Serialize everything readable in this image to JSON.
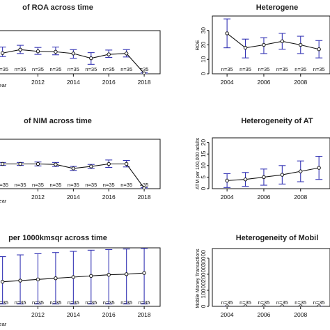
{
  "chart_data": [
    {
      "type": "line",
      "title": "of ROA across time",
      "xlabel": "Year",
      "xlabel_visible": "'ear",
      "ylabel": "",
      "x": [
        2010,
        2011,
        2012,
        2013,
        2014,
        2015,
        2016,
        2017,
        2018
      ],
      "xlim": [
        2009.7,
        2018.9
      ],
      "x_ticks": [
        2012,
        2014,
        2016,
        2018
      ],
      "ylim": [
        0,
        10
      ],
      "series": [
        {
          "values": [
            4.8,
            5.6,
            5.2,
            5.1,
            4.7,
            3.6,
            4.5,
            4.7,
            0.1
          ],
          "error_low": [
            4.0,
            4.7,
            4.5,
            4.4,
            3.6,
            2.2,
            3.8,
            3.9,
            0.0
          ],
          "error_high": [
            6.2,
            6.6,
            6.1,
            6.2,
            5.6,
            4.9,
            5.5,
            5.6,
            0.3
          ]
        }
      ],
      "n_labels": [
        "n=35",
        "n=35",
        "n=35",
        "n=35",
        "n=35",
        "n=35",
        "n=35",
        "n=35",
        "=35"
      ],
      "grid": false
    },
    {
      "type": "line",
      "title": "Heterogene",
      "xlabel": "",
      "ylabel": "ROE",
      "x": [
        2004,
        2005,
        2006,
        2007,
        2008,
        2009
      ],
      "xlim": [
        2003.2,
        2009.6
      ],
      "x_ticks": [
        2004,
        2006,
        2008
      ],
      "y_ticks": [
        0,
        10,
        20,
        30
      ],
      "ylim": [
        0,
        40
      ],
      "series": [
        {
          "values": [
            28,
            18,
            20,
            22.5,
            20,
            17
          ],
          "error_low": [
            18,
            11,
            14,
            17,
            14,
            11
          ],
          "error_high": [
            38,
            24,
            25,
            28,
            26,
            23
          ]
        }
      ],
      "n_labels": [
        "n=35",
        "n=35",
        "n=35",
        "n=35",
        "n=35",
        "n=35"
      ],
      "grid": false
    },
    {
      "type": "line",
      "title": "of NIM across time",
      "xlabel": "Year",
      "xlabel_visible": "'ear",
      "ylabel": "",
      "x": [
        2010,
        2011,
        2012,
        2013,
        2014,
        2015,
        2016,
        2017,
        2018
      ],
      "xlim": [
        2009.7,
        2018.9
      ],
      "x_ticks": [
        2012,
        2014,
        2016,
        2018
      ],
      "ylim": [
        0,
        10
      ],
      "series": [
        {
          "values": [
            5.0,
            5.0,
            5.0,
            4.9,
            4.1,
            4.5,
            5.0,
            5.0,
            0.1
          ],
          "error_low": [
            4.7,
            4.7,
            4.6,
            4.5,
            3.7,
            4.1,
            4.3,
            4.4,
            0.0
          ],
          "error_high": [
            5.3,
            5.3,
            5.4,
            5.3,
            4.5,
            4.9,
            5.8,
            5.7,
            0.2
          ]
        }
      ],
      "n_labels": [
        "n=35",
        "n=35",
        "n=35",
        "n=35",
        "n=35",
        "n=35",
        "n=35",
        "n=35",
        "=35"
      ],
      "grid": false
    },
    {
      "type": "line",
      "title": "Heterogeneity of AT",
      "xlabel": "",
      "ylabel": "ATM per 100,000 adults",
      "x": [
        2004,
        2005,
        2006,
        2007,
        2008,
        2009
      ],
      "xlim": [
        2003.2,
        2009.6
      ],
      "x_ticks": [
        2004,
        2006,
        2008
      ],
      "y_ticks": [
        0,
        5,
        10,
        15,
        20
      ],
      "ylim": [
        0,
        22
      ],
      "series": [
        {
          "values": [
            3.5,
            4,
            5,
            6,
            7.5,
            9
          ],
          "error_low": [
            0.5,
            1,
            1.5,
            2,
            3,
            4
          ],
          "error_high": [
            6.5,
            7,
            8.5,
            10,
            12,
            14
          ]
        }
      ],
      "n_labels": [],
      "grid": false
    },
    {
      "type": "line",
      "title": "per 1000kmsqr across time",
      "xlabel": "Year",
      "xlabel_visible": "'ear",
      "ylabel": "",
      "x": [
        2010,
        2011,
        2012,
        2013,
        2014,
        2015,
        2016,
        2017,
        2018
      ],
      "xlim": [
        2009.7,
        2018.9
      ],
      "x_ticks": [
        2012,
        2014,
        2016,
        2018
      ],
      "ylim": [
        0,
        10
      ],
      "series": [
        {
          "values": [
            4.2,
            4.4,
            4.6,
            4.8,
            5.0,
            5.2,
            5.4,
            5.5,
            5.7
          ],
          "error_low": [
            0.4,
            0.4,
            0.4,
            0.4,
            0.4,
            0.4,
            0.4,
            0.4,
            0.4
          ],
          "error_high": [
            8.5,
            8.8,
            9.0,
            9.2,
            9.4,
            9.6,
            9.7,
            9.8,
            9.9
          ]
        }
      ],
      "n_labels": [
        "n=35",
        "n=35",
        "n=35",
        "n=35",
        "n=35",
        "n=35",
        "n=35",
        "n=35",
        "n=35"
      ],
      "grid": false
    },
    {
      "type": "line",
      "title": "Heterogeneity of Mobil",
      "xlabel": "",
      "ylabel": "Mobile Money Transactions",
      "x": [
        2004,
        2005,
        2006,
        2007,
        2008,
        2009
      ],
      "xlim": [
        2003.2,
        2009.6
      ],
      "x_ticks": [
        2004,
        2006,
        2008
      ],
      "y_ticks": [
        0,
        10000,
        20000,
        30000
      ],
      "ylim": [
        0,
        36000
      ],
      "series": [
        {
          "values": [
            0,
            0,
            0,
            0,
            0,
            0
          ],
          "error_low": [
            0,
            0,
            0,
            0,
            0,
            0
          ],
          "error_high": [
            0,
            0,
            0,
            0,
            0,
            0
          ]
        }
      ],
      "n_labels": [
        "n=35",
        "n=35",
        "n=35",
        "n=35",
        "n=35",
        "n=35"
      ],
      "grid": false
    }
  ],
  "colors": {
    "error_bar": "#3535b5",
    "line": "#111111",
    "axis": "#111111"
  }
}
